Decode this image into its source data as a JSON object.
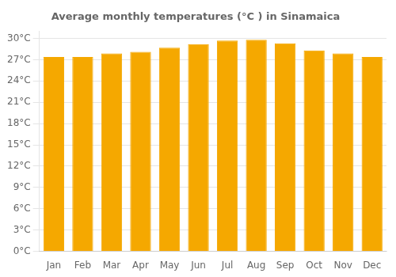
{
  "chart_data": {
    "type": "bar",
    "title": "Average monthly temperatures (°C ) in Sinamaica",
    "categories": [
      "Jan",
      "Feb",
      "Mar",
      "Apr",
      "May",
      "Jun",
      "Jul",
      "Aug",
      "Sep",
      "Oct",
      "Nov",
      "Dec"
    ],
    "values": [
      27.4,
      27.4,
      27.9,
      28.1,
      28.7,
      29.2,
      29.7,
      29.8,
      29.3,
      28.3,
      27.9,
      27.4
    ],
    "color": "#F5A800",
    "ylim": [
      0,
      31
    ],
    "yticks": [
      {
        "value": 0,
        "label": "0°C"
      },
      {
        "value": 3,
        "label": "3°C"
      },
      {
        "value": 6,
        "label": "6°C"
      },
      {
        "value": 9,
        "label": "9°C"
      },
      {
        "value": 12,
        "label": "12°C"
      },
      {
        "value": 15,
        "label": "15°C"
      },
      {
        "value": 18,
        "label": "18°C"
      },
      {
        "value": 21,
        "label": "21°C"
      },
      {
        "value": 24,
        "label": "24°C"
      },
      {
        "value": 27,
        "label": "27°C"
      },
      {
        "value": 30,
        "label": "30°C"
      }
    ],
    "grid": true
  }
}
